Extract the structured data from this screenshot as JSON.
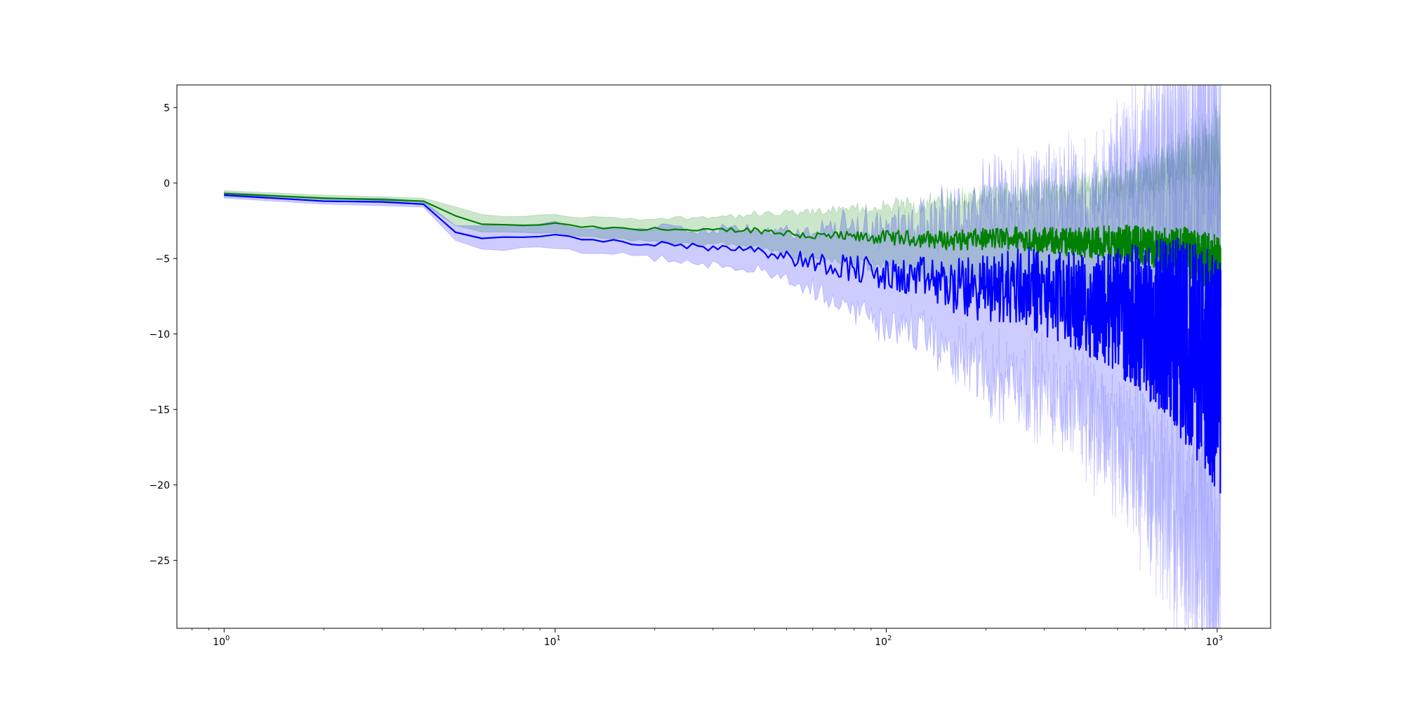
{
  "chart_data": {
    "type": "line",
    "title": "",
    "xlabel": "",
    "ylabel": "",
    "xscale": "log",
    "xlim": [
      0.72,
      1450
    ],
    "ylim": [
      -29.5,
      6.5
    ],
    "grid": false,
    "legend": "none",
    "x_ticks": [
      {
        "value": 1,
        "base": "10",
        "exp": "0"
      },
      {
        "value": 10,
        "base": "10",
        "exp": "1"
      },
      {
        "value": 100,
        "base": "10",
        "exp": "2"
      },
      {
        "value": 1000,
        "base": "10",
        "exp": "3"
      }
    ],
    "y_ticks": [
      {
        "value": 5,
        "label": "5"
      },
      {
        "value": 0,
        "label": "0"
      },
      {
        "value": -5,
        "label": "−5"
      },
      {
        "value": -10,
        "label": "−10"
      },
      {
        "value": -15,
        "label": "−15"
      },
      {
        "value": -20,
        "label": "−20"
      },
      {
        "value": -25,
        "label": "−25"
      }
    ],
    "series": [
      {
        "color": "#008000",
        "band_color": "#008000",
        "band_opacity": 0.2,
        "x": [
          1,
          2,
          3,
          4,
          5,
          6,
          7,
          8,
          10,
          12,
          15,
          18,
          22,
          27,
          33,
          40,
          50,
          60,
          80,
          100,
          130,
          160,
          200,
          250,
          300,
          400,
          500,
          600,
          700,
          800,
          900,
          1000,
          1024
        ],
        "y": [
          -0.7,
          -1.0,
          -1.1,
          -1.2,
          -2.2,
          -2.7,
          -2.8,
          -2.8,
          -2.7,
          -2.9,
          -3.0,
          -3.1,
          -3.0,
          -3.2,
          -3.1,
          -3.1,
          -3.3,
          -3.5,
          -3.6,
          -3.6,
          -3.7,
          -3.8,
          -3.7,
          -3.6,
          -3.8,
          -3.9,
          -4.0,
          -4.1,
          -4.5,
          -4.6,
          -5.2,
          -5.6,
          -6.0
        ],
        "lower": [
          -0.9,
          -1.2,
          -1.3,
          -1.4,
          -2.8,
          -3.2,
          -3.3,
          -3.3,
          -3.3,
          -3.5,
          -3.7,
          -3.8,
          -3.9,
          -4.1,
          -4.1,
          -4.3,
          -4.6,
          -5.0,
          -5.3,
          -5.6,
          -6.0,
          -6.3,
          -6.3,
          -6.4,
          -6.8,
          -7.0,
          -7.5,
          -7.8,
          -8.0,
          -8.5,
          -9.5,
          -10.5,
          -11.0
        ],
        "upper": [
          -0.5,
          -0.8,
          -0.9,
          -1.0,
          -1.6,
          -2.1,
          -2.2,
          -2.2,
          -2.1,
          -2.3,
          -2.3,
          -2.4,
          -2.3,
          -2.3,
          -2.2,
          -2.1,
          -2.0,
          -1.9,
          -1.8,
          -1.6,
          -1.4,
          -1.1,
          -1.0,
          -0.7,
          -0.6,
          -0.3,
          0.0,
          0.5,
          1.0,
          1.5,
          2.0,
          2.5,
          2.5
        ]
      },
      {
        "color": "#0000ff",
        "band_color": "#0000ff",
        "band_opacity": 0.2,
        "x": [
          1,
          2,
          3,
          4,
          5,
          6,
          7,
          8,
          10,
          12,
          15,
          18,
          22,
          27,
          33,
          40,
          50,
          60,
          80,
          100,
          130,
          160,
          200,
          250,
          300,
          400,
          500,
          600,
          700,
          800,
          900,
          1000,
          1024
        ],
        "y": [
          -0.8,
          -1.2,
          -1.25,
          -1.4,
          -3.3,
          -3.6,
          -3.6,
          -3.6,
          -3.5,
          -3.7,
          -3.9,
          -4.0,
          -3.9,
          -4.3,
          -4.2,
          -4.3,
          -4.9,
          -5.2,
          -5.6,
          -6.2,
          -6.3,
          -6.9,
          -7.0,
          -6.8,
          -7.3,
          -8.0,
          -8.5,
          -9.0,
          -9.5,
          -10.5,
          -11.5,
          -12.5,
          -13.5
        ],
        "lower": [
          -1.0,
          -1.4,
          -1.5,
          -1.6,
          -3.8,
          -4.3,
          -4.4,
          -4.4,
          -4.3,
          -4.5,
          -4.7,
          -4.9,
          -5.0,
          -5.4,
          -5.4,
          -5.6,
          -6.5,
          -7.2,
          -8.3,
          -9.3,
          -10.0,
          -11.5,
          -12.5,
          -13.0,
          -13.5,
          -15.0,
          -17.0,
          -19.0,
          -21.0,
          -23.0,
          -24.5,
          -26.0,
          -27.0
        ],
        "upper": [
          -0.6,
          -1.0,
          -1.0,
          -1.2,
          -2.8,
          -2.9,
          -2.8,
          -2.8,
          -2.7,
          -2.9,
          -3.1,
          -3.1,
          -2.9,
          -3.2,
          -3.0,
          -3.0,
          -3.3,
          -3.2,
          -2.9,
          -3.1,
          -2.6,
          -2.3,
          -1.5,
          -0.6,
          -1.1,
          -1.0,
          0.0,
          1.0,
          2.0,
          2.5,
          2.8,
          3.0,
          3.0
        ]
      }
    ]
  }
}
